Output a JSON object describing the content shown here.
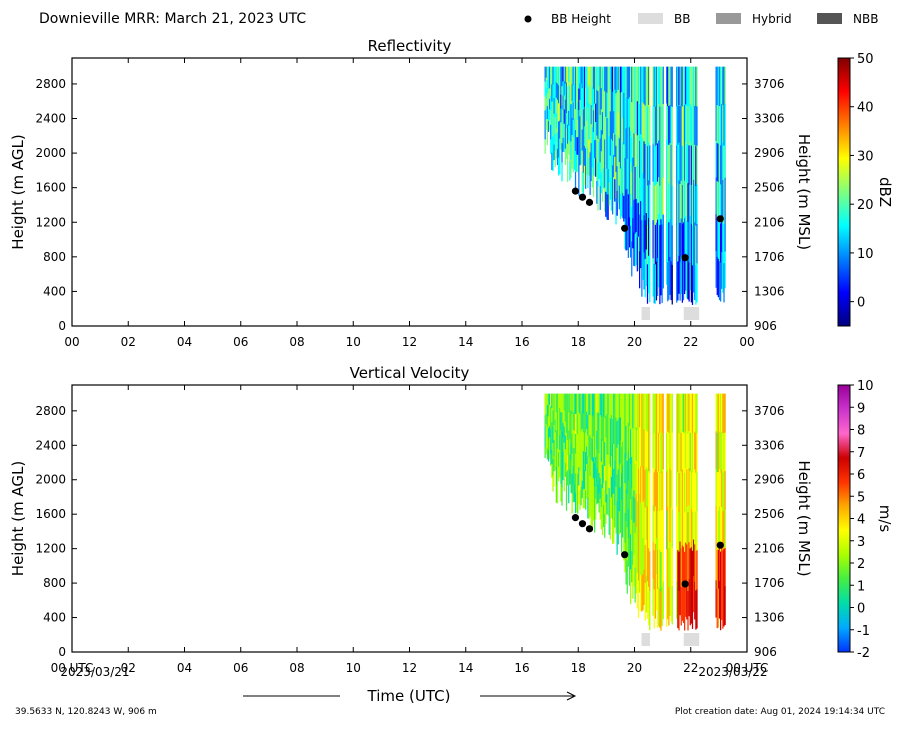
{
  "header": {
    "title": "Downieville MRR:  March 21, 2023 UTC",
    "legend": [
      {
        "label": "BB Height",
        "kind": "dot",
        "color": "#000000"
      },
      {
        "label": "BB",
        "kind": "box",
        "color": "#dddddd"
      },
      {
        "label": "Hybrid",
        "kind": "box",
        "color": "#999999"
      },
      {
        "label": "NBB",
        "kind": "box",
        "color": "#555555"
      }
    ]
  },
  "footer": {
    "location": "39.5633 N, 120.8243 W, 906 m",
    "creation": "Plot creation date: Aug 01, 2024 19:14:34 UTC",
    "xlabel": "Time (UTC)",
    "start_date": "2023/03/21",
    "end_date": "2023/03/22"
  },
  "colors": {
    "bb_marker": "#000000",
    "bb_bar": "#dddddd"
  },
  "chart_data": [
    {
      "type": "heatmap",
      "title": "Reflectivity",
      "xlabel": "",
      "ylabel": "Height (m AGL)",
      "y2label": "Height (m MSL)",
      "colorbar_label": "dBZ",
      "xlim": [
        0,
        24
      ],
      "ylim": [
        0,
        3100
      ],
      "x_ticks": [
        "00",
        "02",
        "04",
        "06",
        "08",
        "10",
        "12",
        "14",
        "16",
        "18",
        "20",
        "22",
        "00"
      ],
      "y_ticks": [
        0,
        400,
        800,
        1200,
        1600,
        2000,
        2400,
        2800
      ],
      "y2_ticks": [
        906,
        1306,
        1706,
        2106,
        2506,
        2906,
        3306,
        3706
      ],
      "colorbar_ticks": [
        0,
        10,
        20,
        30,
        40,
        50
      ],
      "colorbar_range": [
        -5,
        50
      ],
      "colorscale": [
        "#00007f",
        "#0000ff",
        "#007fff",
        "#00ffff",
        "#7fff7f",
        "#ffff00",
        "#ff7f00",
        "#ff0000",
        "#7f0000"
      ],
      "data_coverage_utc": [
        16.8,
        23.2
      ],
      "bright_band_height": [
        {
          "time": 17.9,
          "height": 1560
        },
        {
          "time": 18.15,
          "height": 1490
        },
        {
          "time": 18.4,
          "height": 1430
        },
        {
          "time": 19.65,
          "height": 1130
        },
        {
          "time": 21.8,
          "height": 790
        },
        {
          "time": 23.05,
          "height": 1240
        }
      ],
      "bright_band_periods": [
        [
          20.25,
          20.55
        ],
        [
          21.75,
          22.3
        ]
      ]
    },
    {
      "type": "heatmap",
      "title": "Vertical Velocity",
      "xlabel": "Time (UTC)",
      "ylabel": "Height (m AGL)",
      "y2label": "Height (m MSL)",
      "colorbar_label": "m/s",
      "xlim": [
        0,
        24
      ],
      "ylim": [
        0,
        3100
      ],
      "x_ticks": [
        "00 UTC",
        "02",
        "04",
        "06",
        "08",
        "10",
        "12",
        "14",
        "16",
        "18",
        "20",
        "22",
        "00 UTC"
      ],
      "y_ticks": [
        0,
        400,
        800,
        1200,
        1600,
        2000,
        2400,
        2800
      ],
      "y2_ticks": [
        906,
        1306,
        1706,
        2106,
        2506,
        2906,
        3306,
        3706
      ],
      "colorbar_ticks": [
        -2,
        -1,
        0,
        1,
        2,
        3,
        4,
        5,
        6,
        7,
        8,
        9,
        10
      ],
      "colorbar_range": [
        -2,
        10
      ],
      "colorscale": [
        "#0033ff",
        "#00aaff",
        "#00ddaa",
        "#44ee44",
        "#aaff00",
        "#ffff00",
        "#ffaa00",
        "#ff3300",
        "#cc0000",
        "#ff66cc",
        "#cc33cc",
        "#990099"
      ],
      "data_coverage_utc": [
        16.8,
        23.2
      ],
      "bright_band_height": [
        {
          "time": 17.9,
          "height": 1560
        },
        {
          "time": 18.15,
          "height": 1490
        },
        {
          "time": 18.4,
          "height": 1430
        },
        {
          "time": 19.65,
          "height": 1130
        },
        {
          "time": 21.8,
          "height": 790
        },
        {
          "time": 23.05,
          "height": 1240
        }
      ],
      "bright_band_periods": [
        [
          20.25,
          20.55
        ],
        [
          21.75,
          22.3
        ]
      ]
    }
  ]
}
